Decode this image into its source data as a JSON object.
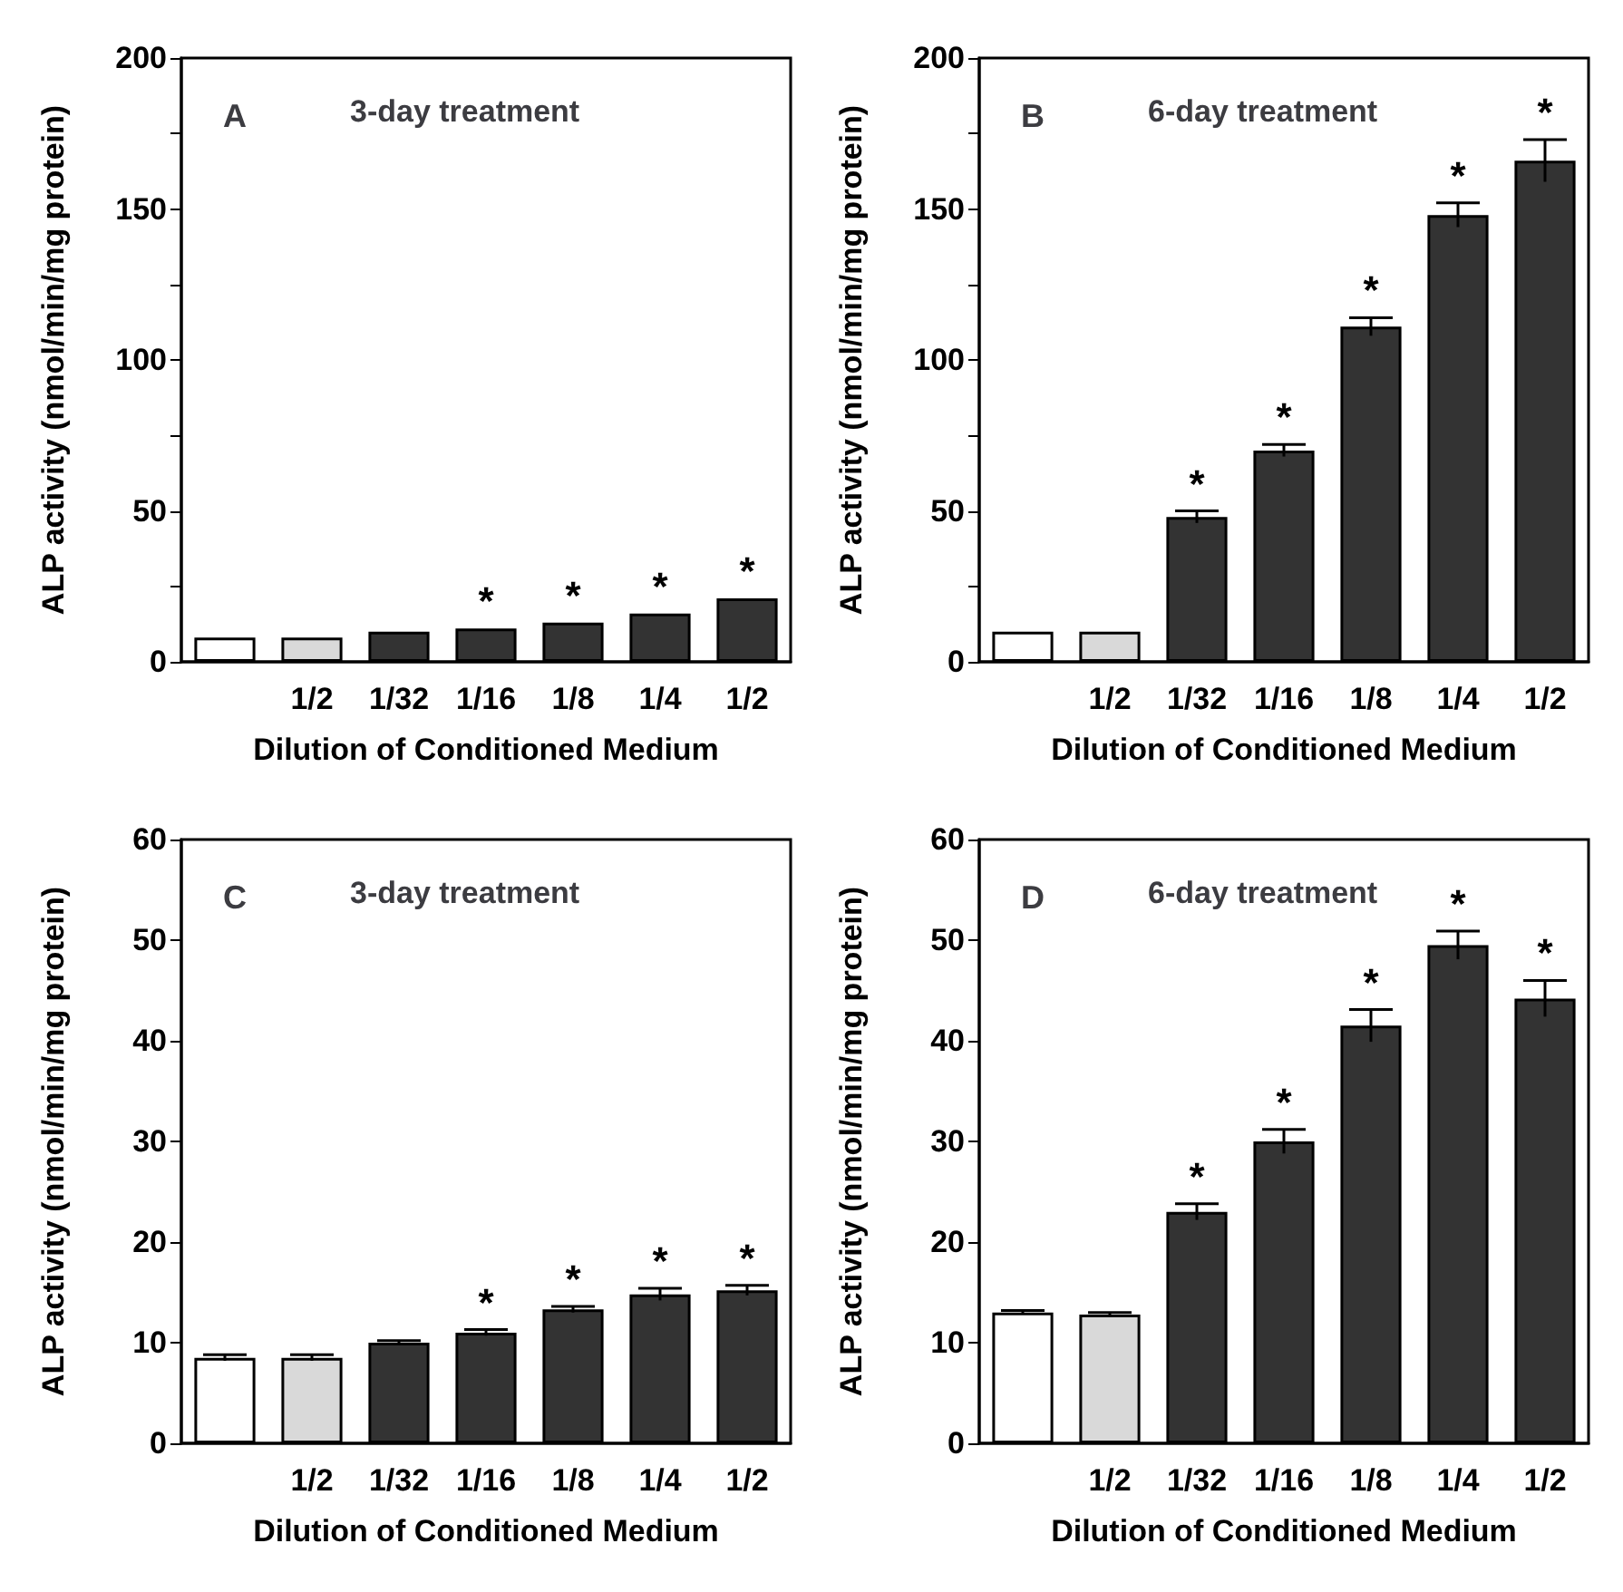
{
  "chart_data": [
    {
      "type": "bar",
      "title": "A",
      "subtitle": "3-day treatment",
      "xlabel": "Dilution of Conditioned Medium",
      "ylabel": "ALP activity (nmol/min/mg protein)",
      "categories": [
        null,
        "1/2",
        "1/32",
        "1/16",
        "1/8",
        "1/4",
        "1/2"
      ],
      "values": [
        8,
        8,
        10,
        11,
        13,
        16,
        21
      ],
      "value_labels": [
        null,
        null,
        null,
        "*",
        "*",
        "*",
        "*"
      ],
      "colors": [
        "#ffffff",
        "#d9d9d9",
        "#333333",
        "#333333",
        "#333333",
        "#333333",
        "#333333"
      ],
      "ylim": [
        0,
        200
      ],
      "yticks": [
        0,
        {
          "value": 25,
          "label": null
        },
        50,
        {
          "value": 75,
          "label": null
        },
        100,
        {
          "value": 125,
          "label": null
        },
        150,
        {
          "value": 175,
          "label": null
        },
        200
      ],
      "grid": false
    },
    {
      "type": "bar",
      "title": "B",
      "subtitle": "6-day treatment",
      "xlabel": "Dilution of Conditioned Medium",
      "ylabel": "ALP activity (nmol/min/mg protein)",
      "categories": [
        null,
        "1/2",
        "1/32",
        "1/16",
        "1/8",
        "1/4",
        "1/2"
      ],
      "values": [
        10,
        10,
        48,
        70,
        111,
        148,
        166
      ],
      "errors": [
        null,
        null,
        2,
        2,
        3,
        4,
        7
      ],
      "value_labels": [
        null,
        null,
        "*",
        "*",
        "*",
        "*",
        "*"
      ],
      "colors": [
        "#ffffff",
        "#d9d9d9",
        "#333333",
        "#333333",
        "#333333",
        "#333333",
        "#333333"
      ],
      "ylim": [
        0,
        200
      ],
      "yticks": [
        0,
        {
          "value": 25,
          "label": null
        },
        50,
        {
          "value": 75,
          "label": null
        },
        100,
        {
          "value": 125,
          "label": null
        },
        150,
        {
          "value": 175,
          "label": null
        },
        200
      ],
      "grid": false
    },
    {
      "type": "bar",
      "title": "C",
      "subtitle": "3-day treatment",
      "xlabel": "Dilution of Conditioned Medium",
      "ylabel": "ALP activity (nmol/min/mg protein)",
      "categories": [
        null,
        "1/2",
        "1/32",
        "1/16",
        "1/8",
        "1/4",
        "1/2"
      ],
      "values": [
        8.5,
        8.5,
        10,
        11,
        13.3,
        14.8,
        15.2
      ],
      "errors": [
        0.3,
        0.3,
        0.2,
        0.3,
        0.3,
        0.6,
        0.5
      ],
      "value_labels": [
        null,
        null,
        null,
        "*",
        "*",
        "*",
        "*"
      ],
      "colors": [
        "#ffffff",
        "#d9d9d9",
        "#333333",
        "#333333",
        "#333333",
        "#333333",
        "#333333"
      ],
      "ylim": [
        0,
        60
      ],
      "yticks": [
        0,
        10,
        20,
        30,
        40,
        50,
        60
      ],
      "grid": false
    },
    {
      "type": "bar",
      "title": "D",
      "subtitle": "6-day treatment",
      "xlabel": "Dilution of Conditioned Medium",
      "ylabel": "ALP activity (nmol/min/mg protein)",
      "categories": [
        null,
        "1/2",
        "1/32",
        "1/16",
        "1/8",
        "1/4",
        "1/2"
      ],
      "values": [
        13,
        12.8,
        23,
        30,
        41.5,
        49.5,
        44.2
      ],
      "errors": [
        0.2,
        0.2,
        0.8,
        1.2,
        1.6,
        1.4,
        1.8
      ],
      "value_labels": [
        null,
        null,
        "*",
        "*",
        "*",
        "*",
        "*"
      ],
      "colors": [
        "#ffffff",
        "#d9d9d9",
        "#333333",
        "#333333",
        "#333333",
        "#333333",
        "#333333"
      ],
      "ylim": [
        0,
        60
      ],
      "yticks": [
        0,
        10,
        20,
        30,
        40,
        50,
        60
      ],
      "grid": false
    }
  ]
}
